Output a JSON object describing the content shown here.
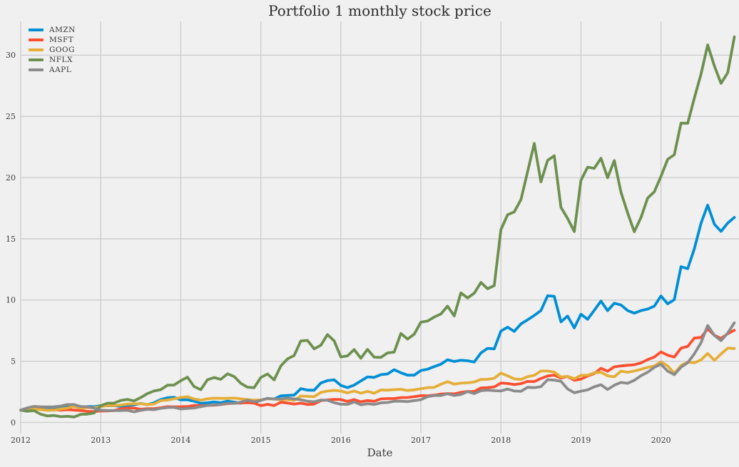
{
  "title": "Portfolio 1 monthly stock price",
  "chart_data": {
    "type": "line",
    "title": "Portfolio 1 monthly stock price",
    "xlabel": "Date",
    "ylabel": "",
    "x_start": "2012-01",
    "x_end": "2020-12",
    "frequency": "monthly",
    "normalized_to_first_month": 1.0,
    "x_tick_labels": [
      "2012",
      "2013",
      "2014",
      "2015",
      "2016",
      "2017",
      "2018",
      "2019",
      "2020"
    ],
    "y_ticks": [
      0,
      5,
      10,
      15,
      20,
      25,
      30
    ],
    "ylim": [
      -0.9,
      32.8
    ],
    "grid": true,
    "legend_position": "upper-left",
    "background_color": "#f0f0f0",
    "grid_color": "#cbcbcb",
    "text_color": "#3c3c3c",
    "series": [
      {
        "name": "AMZN",
        "color": "#008fd5",
        "values": [
          1.0,
          0.92,
          1.04,
          1.19,
          1.1,
          1.17,
          1.2,
          1.28,
          1.31,
          1.2,
          1.3,
          1.29,
          1.37,
          1.36,
          1.37,
          1.31,
          1.38,
          1.43,
          1.55,
          1.45,
          1.61,
          1.87,
          2.02,
          2.05,
          1.84,
          1.86,
          1.73,
          1.56,
          1.61,
          1.67,
          1.61,
          1.74,
          1.66,
          1.57,
          1.74,
          1.6,
          1.82,
          1.96,
          1.91,
          2.17,
          2.21,
          2.23,
          2.76,
          2.64,
          2.63,
          3.22,
          3.42,
          3.48,
          3.02,
          2.84,
          3.05,
          3.39,
          3.72,
          3.68,
          3.9,
          3.96,
          4.31,
          4.06,
          3.86,
          3.86,
          4.24,
          4.35,
          4.56,
          4.76,
          5.12,
          4.98,
          5.08,
          5.04,
          4.94,
          5.68,
          6.05,
          6.01,
          7.46,
          7.78,
          7.44,
          8.05,
          8.38,
          8.74,
          9.14,
          10.35,
          10.3,
          8.22,
          8.69,
          7.72,
          8.84,
          8.43,
          9.16,
          9.91,
          9.13,
          9.74,
          9.6,
          9.14,
          8.93,
          9.14,
          9.26,
          9.5,
          10.33,
          9.69,
          10.03,
          12.72,
          12.56,
          14.19,
          16.28,
          17.75,
          16.19,
          15.61,
          16.29,
          16.75
        ]
      },
      {
        "name": "MSFT",
        "color": "#fc4f30",
        "values": [
          1.0,
          1.07,
          1.09,
          1.08,
          0.99,
          1.04,
          1.0,
          1.04,
          1.01,
          0.97,
          0.9,
          0.9,
          0.93,
          0.94,
          0.97,
          1.12,
          1.18,
          1.17,
          1.08,
          1.13,
          1.13,
          1.2,
          1.29,
          1.27,
          1.28,
          1.3,
          1.39,
          1.37,
          1.39,
          1.41,
          1.46,
          1.54,
          1.57,
          1.59,
          1.62,
          1.57,
          1.37,
          1.48,
          1.38,
          1.65,
          1.59,
          1.5,
          1.58,
          1.47,
          1.5,
          1.78,
          1.84,
          1.88,
          1.87,
          1.72,
          1.87,
          1.69,
          1.79,
          1.73,
          1.92,
          1.95,
          1.95,
          2.03,
          2.04,
          2.1,
          2.19,
          2.17,
          2.23,
          2.32,
          2.36,
          2.33,
          2.46,
          2.53,
          2.52,
          2.82,
          2.85,
          2.9,
          3.22,
          3.18,
          3.09,
          3.17,
          3.35,
          3.34,
          3.59,
          3.8,
          3.87,
          3.62,
          3.76,
          3.44,
          3.54,
          3.79,
          3.99,
          4.42,
          4.19,
          4.54,
          4.61,
          4.67,
          4.71,
          4.86,
          5.13,
          5.34,
          5.76,
          5.49,
          5.34,
          6.07,
          6.21,
          6.89,
          6.94,
          7.64,
          7.12,
          6.86,
          7.25,
          7.53
        ]
      },
      {
        "name": "GOOG",
        "color": "#e5ae38",
        "values": [
          1.0,
          1.07,
          1.11,
          1.04,
          1.0,
          1.0,
          1.09,
          1.18,
          1.3,
          1.17,
          1.2,
          1.22,
          1.3,
          1.38,
          1.37,
          1.42,
          1.5,
          1.52,
          1.53,
          1.46,
          1.51,
          1.78,
          1.83,
          1.93,
          2.04,
          2.1,
          1.92,
          1.82,
          1.93,
          1.98,
          1.97,
          1.97,
          1.99,
          1.93,
          1.87,
          1.82,
          1.84,
          1.93,
          1.91,
          1.85,
          1.88,
          1.8,
          2.16,
          2.13,
          2.1,
          2.45,
          2.56,
          2.62,
          2.56,
          2.41,
          2.57,
          2.39,
          2.54,
          2.39,
          2.65,
          2.64,
          2.68,
          2.71,
          2.61,
          2.66,
          2.75,
          2.84,
          2.86,
          3.12,
          3.33,
          3.13,
          3.21,
          3.24,
          3.31,
          3.51,
          3.52,
          3.61,
          4.03,
          3.81,
          3.56,
          3.51,
          3.74,
          3.85,
          4.2,
          4.2,
          4.12,
          3.71,
          3.77,
          3.57,
          3.85,
          3.86,
          4.05,
          4.1,
          3.81,
          3.73,
          4.19,
          4.1,
          4.2,
          4.34,
          4.5,
          4.61,
          4.95,
          4.62,
          4.01,
          4.65,
          4.93,
          4.87,
          5.11,
          5.63,
          5.07,
          5.59,
          6.07,
          6.04
        ]
      },
      {
        "name": "NFLX",
        "color": "#6d904f",
        "values": [
          1.0,
          0.92,
          0.96,
          0.67,
          0.53,
          0.57,
          0.47,
          0.5,
          0.45,
          0.66,
          0.68,
          0.77,
          1.37,
          1.57,
          1.58,
          1.8,
          1.88,
          1.76,
          2.03,
          2.36,
          2.57,
          2.68,
          3.04,
          3.06,
          3.41,
          3.7,
          2.93,
          2.68,
          3.48,
          3.67,
          3.52,
          3.97,
          3.75,
          3.2,
          2.88,
          2.84,
          3.67,
          3.96,
          3.47,
          4.62,
          5.19,
          5.47,
          6.66,
          6.7,
          6.01,
          6.31,
          7.18,
          6.66,
          5.35,
          5.44,
          5.95,
          5.24,
          5.97,
          5.33,
          5.31,
          5.68,
          5.74,
          7.27,
          6.81,
          7.21,
          8.19,
          8.28,
          8.61,
          8.86,
          9.5,
          8.7,
          10.58,
          10.17,
          10.56,
          11.44,
          10.92,
          11.18,
          15.74,
          16.97,
          17.2,
          18.2,
          20.48,
          22.79,
          19.65,
          21.41,
          21.79,
          17.57,
          16.66,
          15.59,
          19.77,
          20.85,
          20.76,
          21.58,
          19.99,
          21.39,
          18.81,
          17.11,
          15.58,
          16.74,
          18.32,
          18.84,
          20.1,
          21.49,
          21.87,
          24.45,
          24.44,
          26.5,
          28.47,
          30.84,
          29.12,
          27.7,
          28.57,
          31.49
        ]
      },
      {
        "name": "AAPL",
        "color": "#8b8b8b",
        "values": [
          1.0,
          1.19,
          1.31,
          1.28,
          1.27,
          1.28,
          1.34,
          1.46,
          1.46,
          1.3,
          1.28,
          1.17,
          1.0,
          0.97,
          0.97,
          0.97,
          0.99,
          0.87,
          0.99,
          1.07,
          1.04,
          1.15,
          1.22,
          1.23,
          1.1,
          1.15,
          1.18,
          1.29,
          1.39,
          1.43,
          1.47,
          1.57,
          1.55,
          1.66,
          1.82,
          1.69,
          1.8,
          1.97,
          1.91,
          1.92,
          2.0,
          1.92,
          1.86,
          1.73,
          1.69,
          1.83,
          1.81,
          1.61,
          1.49,
          1.48,
          1.67,
          1.44,
          1.53,
          1.47,
          1.6,
          1.63,
          1.73,
          1.74,
          1.7,
          1.78,
          1.86,
          2.1,
          2.2,
          2.2,
          2.34,
          2.21,
          2.28,
          2.52,
          2.36,
          2.59,
          2.64,
          2.6,
          2.57,
          2.73,
          2.57,
          2.54,
          2.87,
          2.84,
          2.92,
          3.49,
          3.46,
          3.36,
          2.74,
          2.42,
          2.55,
          2.66,
          2.91,
          3.08,
          2.69,
          3.04,
          3.27,
          3.2,
          3.44,
          3.82,
          4.1,
          4.5,
          4.75,
          4.19,
          3.9,
          4.51,
          4.88,
          5.6,
          6.52,
          7.92,
          7.11,
          6.68,
          7.3,
          8.14
        ]
      }
    ]
  }
}
